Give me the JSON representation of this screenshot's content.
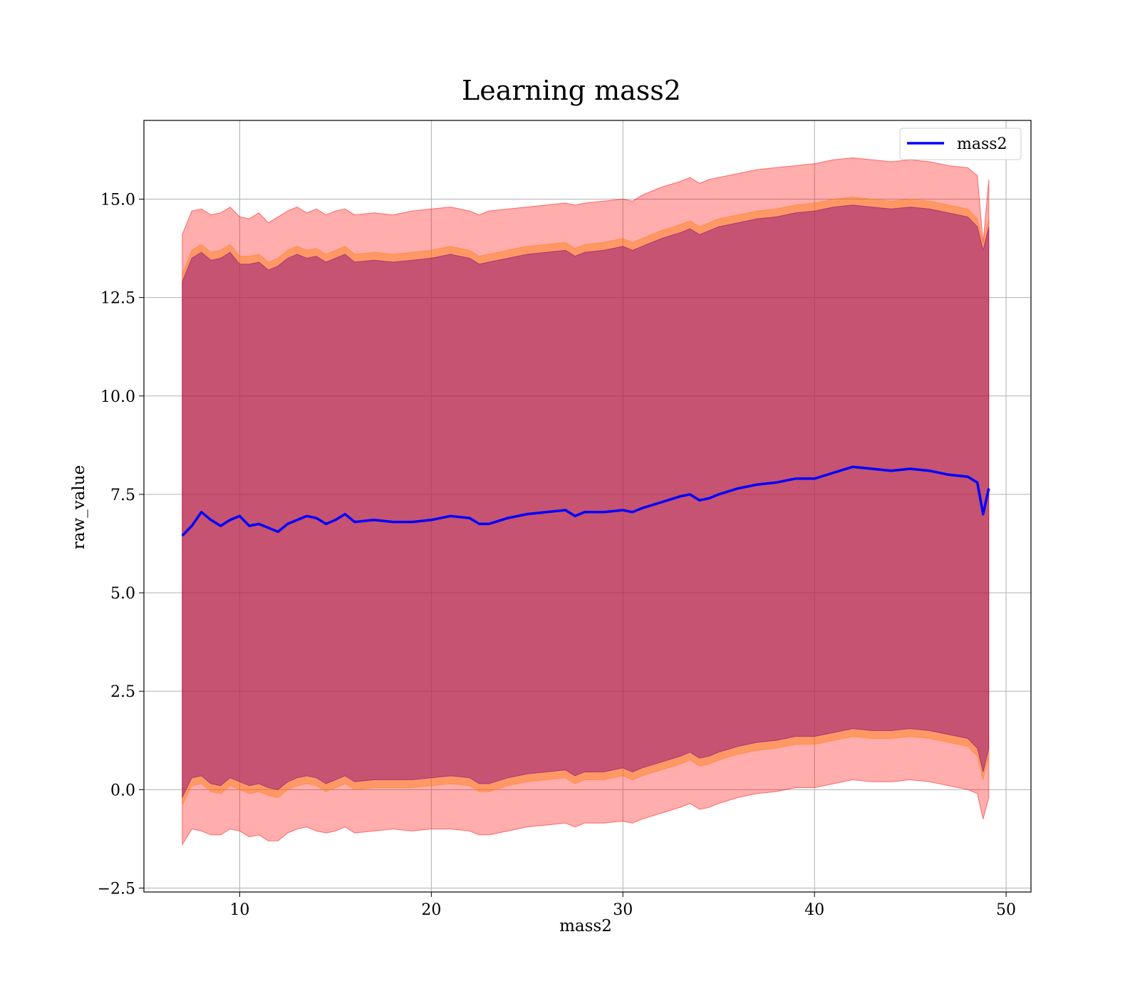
{
  "chart_data": {
    "type": "line",
    "title": "Learning mass2",
    "xlabel": "mass2",
    "ylabel": "raw_value",
    "xlim": [
      5,
      51.3
    ],
    "ylim": [
      -2.6,
      17.0
    ],
    "xticks": [
      10,
      20,
      30,
      40,
      50
    ],
    "yticks": [
      -2.5,
      0.0,
      2.5,
      5.0,
      7.5,
      10.0,
      12.5,
      15.0
    ],
    "xtick_labels": [
      "10",
      "20",
      "30",
      "40",
      "50"
    ],
    "ytick_labels": [
      "−2.5",
      "0.0",
      "2.5",
      "5.0",
      "7.5",
      "10.0",
      "12.5",
      "15.0"
    ],
    "grid": true,
    "legend": {
      "position": "top-right",
      "entries": [
        "mass2"
      ]
    },
    "colors": {
      "line": "#0000ff",
      "band_outer": "#ff0000",
      "band_mid": "#ff7f0e",
      "band_inner": "#800080"
    },
    "series": [
      {
        "name": "mass2",
        "x": [
          7.0,
          7.5,
          8.0,
          8.5,
          9.0,
          9.5,
          10.0,
          10.5,
          11.0,
          11.5,
          12.0,
          12.5,
          13.0,
          13.5,
          14.0,
          14.5,
          15.0,
          15.5,
          16.0,
          17.0,
          18.0,
          19.0,
          20.0,
          21.0,
          22.0,
          22.5,
          23.0,
          24.0,
          25.0,
          26.0,
          27.0,
          27.5,
          28.0,
          29.0,
          30.0,
          30.5,
          31.0,
          32.0,
          33.0,
          33.5,
          34.0,
          34.5,
          35.0,
          36.0,
          37.0,
          38.0,
          39.0,
          40.0,
          41.0,
          42.0,
          43.0,
          44.0,
          45.0,
          46.0,
          47.0,
          48.0,
          48.5,
          48.8,
          49.1
        ],
        "values": [
          6.45,
          6.7,
          7.05,
          6.85,
          6.7,
          6.85,
          6.95,
          6.7,
          6.75,
          6.65,
          6.55,
          6.75,
          6.85,
          6.95,
          6.9,
          6.75,
          6.85,
          7.0,
          6.8,
          6.85,
          6.8,
          6.8,
          6.85,
          6.95,
          6.9,
          6.75,
          6.75,
          6.9,
          7.0,
          7.05,
          7.1,
          6.95,
          7.05,
          7.05,
          7.1,
          7.05,
          7.15,
          7.3,
          7.45,
          7.5,
          7.35,
          7.4,
          7.5,
          7.65,
          7.75,
          7.8,
          7.9,
          7.9,
          8.05,
          8.2,
          8.15,
          8.1,
          8.15,
          8.1,
          8.0,
          7.95,
          7.8,
          7.0,
          7.65
        ]
      }
    ],
    "bands": [
      {
        "upper": [
          14.1,
          14.7,
          14.75,
          14.6,
          14.65,
          14.8,
          14.55,
          14.5,
          14.65,
          14.4,
          14.55,
          14.7,
          14.8,
          14.65,
          14.75,
          14.6,
          14.7,
          14.75,
          14.6,
          14.65,
          14.6,
          14.7,
          14.75,
          14.8,
          14.7,
          14.6,
          14.7,
          14.75,
          14.8,
          14.85,
          14.9,
          14.85,
          14.9,
          14.95,
          15.0,
          14.95,
          15.1,
          15.3,
          15.45,
          15.55,
          15.4,
          15.5,
          15.55,
          15.65,
          15.75,
          15.8,
          15.85,
          15.9,
          16.0,
          16.05,
          16.0,
          15.95,
          16.0,
          15.95,
          15.85,
          15.8,
          15.6,
          13.9,
          15.5
        ],
        "lower": [
          -1.4,
          -1.0,
          -1.05,
          -1.15,
          -1.15,
          -1.0,
          -1.05,
          -1.2,
          -1.15,
          -1.3,
          -1.3,
          -1.1,
          -1.0,
          -0.95,
          -1.05,
          -1.1,
          -1.05,
          -0.95,
          -1.1,
          -1.05,
          -1.0,
          -1.05,
          -1.0,
          -1.0,
          -1.05,
          -1.15,
          -1.15,
          -1.05,
          -0.95,
          -0.9,
          -0.85,
          -0.95,
          -0.85,
          -0.85,
          -0.8,
          -0.85,
          -0.75,
          -0.6,
          -0.45,
          -0.35,
          -0.5,
          -0.45,
          -0.35,
          -0.2,
          -0.1,
          -0.05,
          0.05,
          0.05,
          0.15,
          0.25,
          0.2,
          0.2,
          0.25,
          0.2,
          0.1,
          0.0,
          -0.1,
          -0.75,
          -0.2
        ]
      },
      {
        "upper": [
          13.1,
          13.7,
          13.85,
          13.65,
          13.7,
          13.85,
          13.55,
          13.55,
          13.6,
          13.4,
          13.5,
          13.7,
          13.8,
          13.7,
          13.75,
          13.6,
          13.7,
          13.8,
          13.6,
          13.65,
          13.6,
          13.65,
          13.7,
          13.8,
          13.7,
          13.55,
          13.6,
          13.7,
          13.8,
          13.85,
          13.9,
          13.75,
          13.85,
          13.9,
          14.0,
          13.9,
          14.0,
          14.2,
          14.35,
          14.45,
          14.3,
          14.4,
          14.5,
          14.6,
          14.7,
          14.75,
          14.85,
          14.9,
          15.0,
          15.05,
          15.0,
          14.95,
          15.0,
          14.95,
          14.85,
          14.75,
          14.5,
          13.9,
          14.5
        ],
        "lower": [
          -0.4,
          0.1,
          0.15,
          -0.05,
          -0.1,
          0.1,
          0.0,
          -0.1,
          -0.05,
          -0.15,
          -0.2,
          0.0,
          0.1,
          0.15,
          0.1,
          -0.05,
          0.05,
          0.15,
          0.0,
          0.05,
          0.05,
          0.05,
          0.1,
          0.15,
          0.1,
          -0.05,
          -0.05,
          0.1,
          0.2,
          0.25,
          0.3,
          0.15,
          0.25,
          0.25,
          0.35,
          0.25,
          0.35,
          0.5,
          0.65,
          0.75,
          0.6,
          0.65,
          0.75,
          0.9,
          1.0,
          1.05,
          1.15,
          1.15,
          1.25,
          1.35,
          1.3,
          1.3,
          1.35,
          1.3,
          1.2,
          1.1,
          0.85,
          0.25,
          0.85
        ]
      },
      {
        "upper": [
          12.9,
          13.5,
          13.65,
          13.45,
          13.5,
          13.65,
          13.35,
          13.35,
          13.4,
          13.2,
          13.3,
          13.5,
          13.6,
          13.5,
          13.55,
          13.4,
          13.5,
          13.6,
          13.4,
          13.45,
          13.4,
          13.45,
          13.5,
          13.6,
          13.5,
          13.35,
          13.4,
          13.5,
          13.6,
          13.65,
          13.7,
          13.55,
          13.65,
          13.7,
          13.8,
          13.7,
          13.8,
          14.0,
          14.15,
          14.25,
          14.1,
          14.2,
          14.3,
          14.4,
          14.5,
          14.55,
          14.65,
          14.7,
          14.8,
          14.85,
          14.8,
          14.75,
          14.8,
          14.75,
          14.65,
          14.55,
          14.3,
          13.7,
          14.3
        ],
        "lower": [
          -0.2,
          0.3,
          0.35,
          0.15,
          0.1,
          0.3,
          0.2,
          0.1,
          0.15,
          0.05,
          0.0,
          0.2,
          0.3,
          0.35,
          0.3,
          0.15,
          0.25,
          0.35,
          0.2,
          0.25,
          0.25,
          0.25,
          0.3,
          0.35,
          0.3,
          0.15,
          0.15,
          0.3,
          0.4,
          0.45,
          0.5,
          0.35,
          0.45,
          0.45,
          0.55,
          0.45,
          0.55,
          0.7,
          0.85,
          0.95,
          0.8,
          0.85,
          0.95,
          1.1,
          1.2,
          1.25,
          1.35,
          1.35,
          1.45,
          1.55,
          1.5,
          1.5,
          1.55,
          1.5,
          1.4,
          1.3,
          1.05,
          0.45,
          1.05
        ]
      }
    ]
  }
}
